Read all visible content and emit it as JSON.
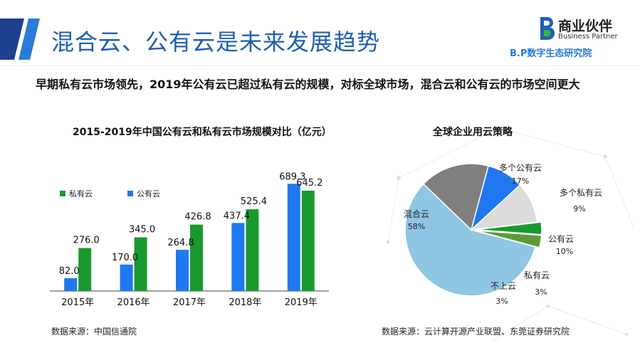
{
  "header": {
    "title": "混合云、公有云是未来发展趋势",
    "subtitle": "早期私有云市场领先，2019年公有云已超过私有云的规模，对标全球市场，混合云和公有云的市场空间更大"
  },
  "logo": {
    "name": "商业伙伴",
    "english": "Business Partner",
    "sub": "B.P数字生态研究院"
  },
  "colors": {
    "accent": "#1f5fb0",
    "private_cloud": "#1a9a2e",
    "public_cloud": "#1f78f0",
    "hybrid": "#8ec6e3",
    "multi_public": "#7f7f7f",
    "multi_private": "#1f78f0",
    "public_slice": "#dcdcdc",
    "private_slice": "#1a9a2e",
    "not_on_cloud": "#5f9a3a"
  },
  "bar_chart": {
    "title": "2015-2019年中国公有云和私有云市场规模对比（亿元）",
    "source": "数据来源：中国信通院"
  },
  "pie_chart": {
    "title": "全球企业用云策略",
    "source": "数据来源：云计算开源产业联盟、东莞证券研究院"
  },
  "chart_data": [
    {
      "type": "bar",
      "title": "2015-2019年中国公有云和私有云市场规模对比（亿元）",
      "categories": [
        "2015年",
        "2016年",
        "2017年",
        "2018年",
        "2019年"
      ],
      "series": [
        {
          "name": "私有云",
          "values": [
            276.0,
            345.0,
            426.8,
            525.4,
            645.2
          ],
          "labels": [
            "276.0",
            "345.0",
            "426.8",
            "525.4",
            "645.2"
          ]
        },
        {
          "name": "公有云",
          "values": [
            82.0,
            170.0,
            264.8,
            437.4,
            689.3
          ],
          "labels": [
            "82.0",
            "170.0",
            "264.8",
            "437.4",
            "689.3"
          ]
        }
      ],
      "ylim": [
        0,
        700
      ],
      "grid": false,
      "legend": "top-left"
    },
    {
      "type": "pie",
      "title": "全球企业用云策略",
      "slices": [
        {
          "name": "混合云",
          "value": 58,
          "label": "58%"
        },
        {
          "name": "多个公有云",
          "value": 17,
          "label": "17%"
        },
        {
          "name": "多个私有云",
          "value": 9,
          "label": "9%"
        },
        {
          "name": "公有云",
          "value": 10,
          "label": "10%"
        },
        {
          "name": "私有云",
          "value": 3,
          "label": "3%"
        },
        {
          "name": "不上云",
          "value": 3,
          "label": "3%"
        }
      ]
    }
  ]
}
